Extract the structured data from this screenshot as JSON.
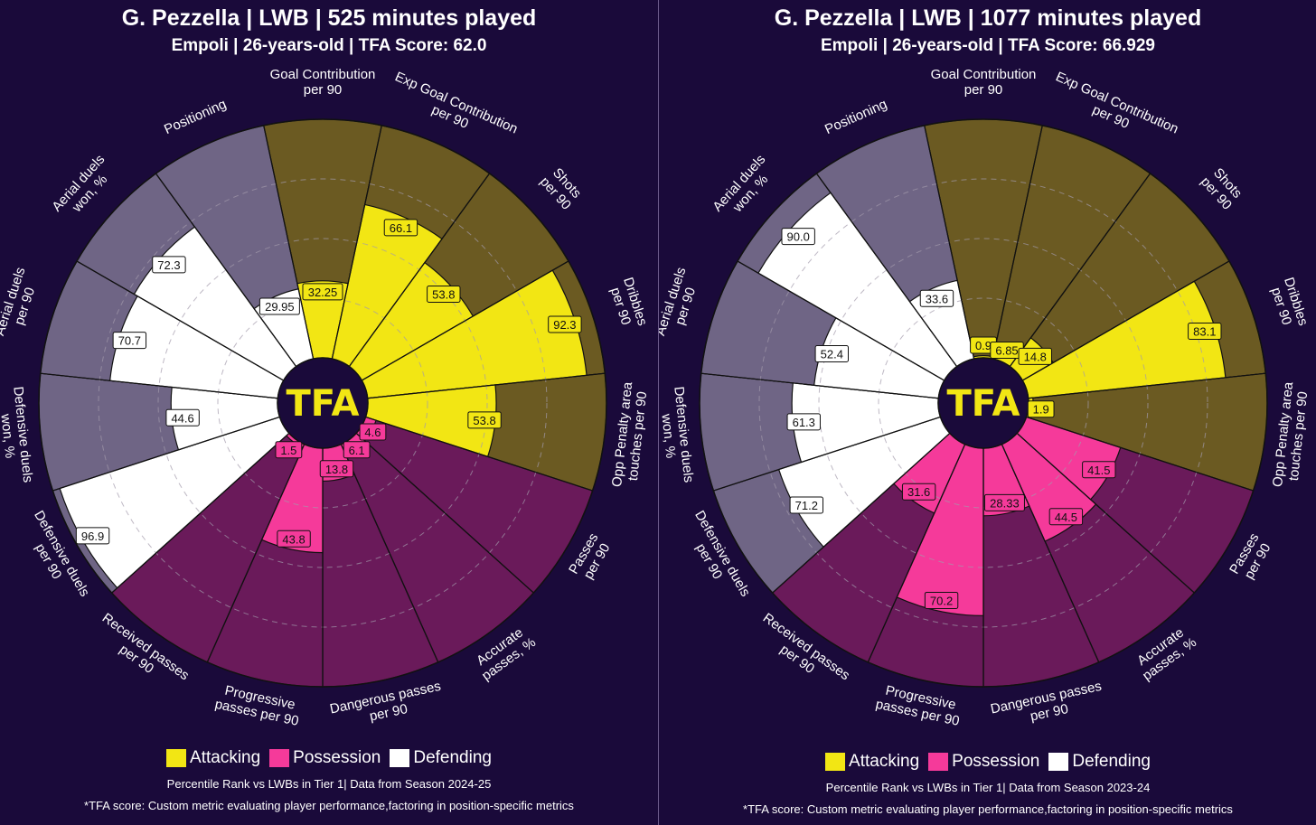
{
  "colors": {
    "background": "#1a0a3a",
    "attacking": "#f2e614",
    "attacking_bg": "#6b5a22",
    "possession": "#f53a9a",
    "possession_bg": "#6a1a5a",
    "defending": "#ffffff",
    "defending_bg": "#6f6585",
    "center": "#1a0a3a",
    "logo_text": "#f2e614"
  },
  "legend": {
    "attacking": "Attacking",
    "possession": "Possession",
    "defending": "Defending"
  },
  "logo": "TFA",
  "charts": [
    {
      "title": "G. Pezzella | LWB | 525 minutes played",
      "subtitle": "Empoli | 26-years-old | TFA Score: 62.0",
      "footnote1": "Percentile Rank vs LWBs in Tier 1| Data from Season 2024-25",
      "footnote2": "*TFA score: Custom metric evaluating player performance,factoring in position-specific metrics"
    },
    {
      "title": "G. Pezzella | LWB | 1077 minutes played",
      "subtitle": "Empoli | 26-years-old | TFA Score: 66.929",
      "footnote1": "Percentile Rank vs LWBs in Tier 1| Data from Season 2023-24",
      "footnote2": "*TFA score: Custom metric evaluating player performance,factoring in position-specific metrics"
    }
  ],
  "chart_data": [
    {
      "type": "polar-bar",
      "title": "G. Pezzella | LWB | 525 minutes played",
      "range": [
        0,
        100
      ],
      "categories": [
        {
          "label": [
            "Goal Contribution",
            "per 90"
          ],
          "group": "attacking",
          "value": 32.25,
          "display": "32.25"
        },
        {
          "label": [
            "Exp Goal Contribution",
            "per 90"
          ],
          "group": "attacking",
          "value": 66.1,
          "display": "66.1"
        },
        {
          "label": [
            "Shots",
            "per 90"
          ],
          "group": "attacking",
          "value": 53.8,
          "display": "53.8"
        },
        {
          "label": [
            "Dribbles",
            "per 90"
          ],
          "group": "attacking",
          "value": 92.3,
          "display": "92.3"
        },
        {
          "label": [
            "Opp Penalty area",
            "touches per 90"
          ],
          "group": "attacking",
          "value": 53.8,
          "display": "53.8"
        },
        {
          "label": [
            "Passes",
            "per 90"
          ],
          "group": "possession",
          "value": 4.6,
          "display": "4.6"
        },
        {
          "label": [
            "Accurate",
            "passes, %"
          ],
          "group": "possession",
          "value": 6.1,
          "display": "6.1"
        },
        {
          "label": [
            "Dangerous passes",
            "per 90"
          ],
          "group": "possession",
          "value": 13.8,
          "display": "13.8"
        },
        {
          "label": [
            "Progressive",
            "passes per 90"
          ],
          "group": "possession",
          "value": 43.8,
          "display": "43.8"
        },
        {
          "label": [
            "Received passes",
            "per 90"
          ],
          "group": "possession",
          "value": 1.5,
          "display": "1.5"
        },
        {
          "label": [
            "Defensive duels",
            "per 90"
          ],
          "group": "defending",
          "value": 96.9,
          "display": "96.9"
        },
        {
          "label": [
            "Defensive duels",
            "won, %"
          ],
          "group": "defending",
          "value": 44.6,
          "display": "44.6"
        },
        {
          "label": [
            "Aerial duels",
            "per 90"
          ],
          "group": "defending",
          "value": 70.7,
          "display": "70.7"
        },
        {
          "label": [
            "Aerial duels",
            "won, %"
          ],
          "group": "defending",
          "value": 72.3,
          "display": "72.3"
        },
        {
          "label": [
            "Positioning"
          ],
          "group": "defending",
          "value": 29.95,
          "display": "29.95"
        }
      ]
    },
    {
      "type": "polar-bar",
      "title": "G. Pezzella | LWB | 1077 minutes played",
      "range": [
        0,
        100
      ],
      "categories": [
        {
          "label": [
            "Goal Contribution",
            "per 90"
          ],
          "group": "attacking",
          "value": 0.9,
          "display": "0.9"
        },
        {
          "label": [
            "Exp Goal Contribution",
            "per 90"
          ],
          "group": "attacking",
          "value": 6.85,
          "display": "6.85"
        },
        {
          "label": [
            "Shots",
            "per 90"
          ],
          "group": "attacking",
          "value": 14.8,
          "display": "14.8"
        },
        {
          "label": [
            "Dribbles",
            "per 90"
          ],
          "group": "attacking",
          "value": 83.1,
          "display": "83.1"
        },
        {
          "label": [
            "Opp Penalty area",
            "touches per 90"
          ],
          "group": "attacking",
          "value": 1.9,
          "display": "1.9"
        },
        {
          "label": [
            "Passes",
            "per 90"
          ],
          "group": "possession",
          "value": 41.5,
          "display": "41.5"
        },
        {
          "label": [
            "Accurate",
            "passes, %"
          ],
          "group": "possession",
          "value": 44.5,
          "display": "44.5"
        },
        {
          "label": [
            "Dangerous passes",
            "per 90"
          ],
          "group": "possession",
          "value": 28.33,
          "display": "28.33"
        },
        {
          "label": [
            "Progressive",
            "passes per 90"
          ],
          "group": "possession",
          "value": 70.2,
          "display": "70.2"
        },
        {
          "label": [
            "Received passes",
            "per 90"
          ],
          "group": "possession",
          "value": 31.6,
          "display": "31.6"
        },
        {
          "label": [
            "Defensive duels",
            "per 90"
          ],
          "group": "defending",
          "value": 71.2,
          "display": "71.2"
        },
        {
          "label": [
            "Defensive duels",
            "won, %"
          ],
          "group": "defending",
          "value": 61.3,
          "display": "61.3"
        },
        {
          "label": [
            "Aerial duels",
            "per 90"
          ],
          "group": "defending",
          "value": 52.4,
          "display": "52.4"
        },
        {
          "label": [
            "Aerial duels",
            "won, %"
          ],
          "group": "defending",
          "value": 90.0,
          "display": "90.0"
        },
        {
          "label": [
            "Positioning"
          ],
          "group": "defending",
          "value": 33.6,
          "display": "33.6"
        }
      ]
    }
  ]
}
